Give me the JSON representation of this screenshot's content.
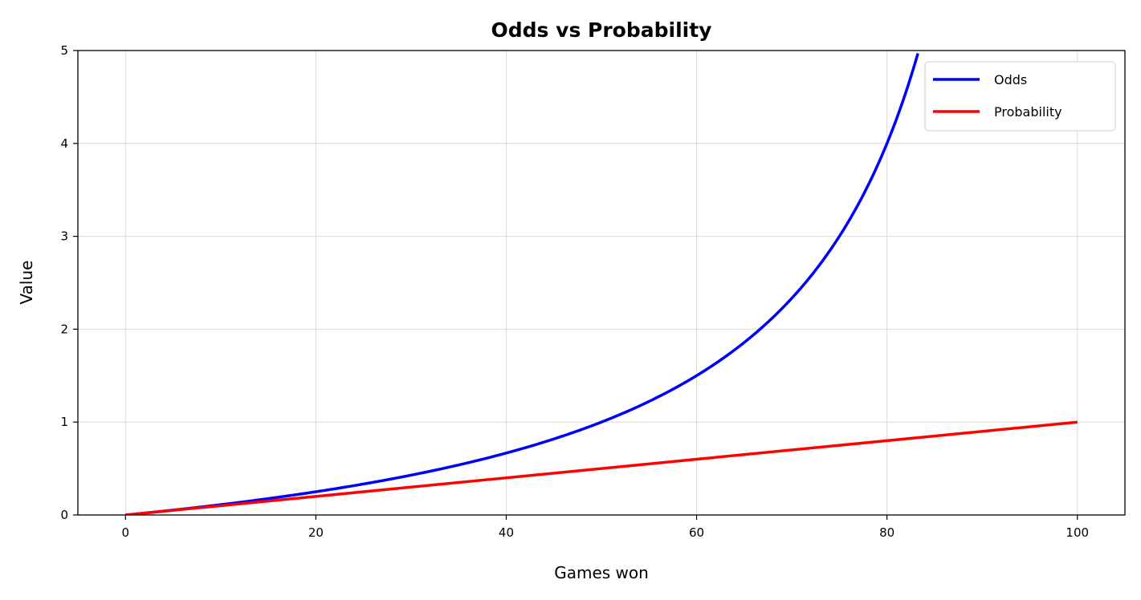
{
  "chart_data": {
    "type": "line",
    "title": "Odds vs Probability",
    "xlabel": "Games won",
    "ylabel": "Value",
    "xlim": [
      -5,
      105
    ],
    "ylim": [
      0,
      5
    ],
    "xticks": [
      0,
      20,
      40,
      60,
      80,
      100
    ],
    "yticks": [
      0,
      1,
      2,
      3,
      4,
      5
    ],
    "xtick_labels": [
      "0",
      "20",
      "40",
      "60",
      "80",
      "100"
    ],
    "ytick_labels": [
      "0",
      "1",
      "2",
      "3",
      "4",
      "5"
    ],
    "grid": true,
    "legend_position": "top-right",
    "series": [
      {
        "name": "Odds",
        "color": "#0000ff",
        "x": [
          0,
          10,
          20,
          30,
          40,
          50,
          60,
          65,
          70,
          75,
          80,
          83.3
        ],
        "y": [
          0,
          0.111,
          0.25,
          0.429,
          0.667,
          1.0,
          1.5,
          1.857,
          2.333,
          3.0,
          4.0,
          5.0
        ]
      },
      {
        "name": "Probability",
        "color": "#ff0000",
        "x": [
          0,
          20,
          40,
          60,
          80,
          100
        ],
        "y": [
          0,
          0.2,
          0.4,
          0.6,
          0.8,
          1.0
        ]
      }
    ]
  }
}
